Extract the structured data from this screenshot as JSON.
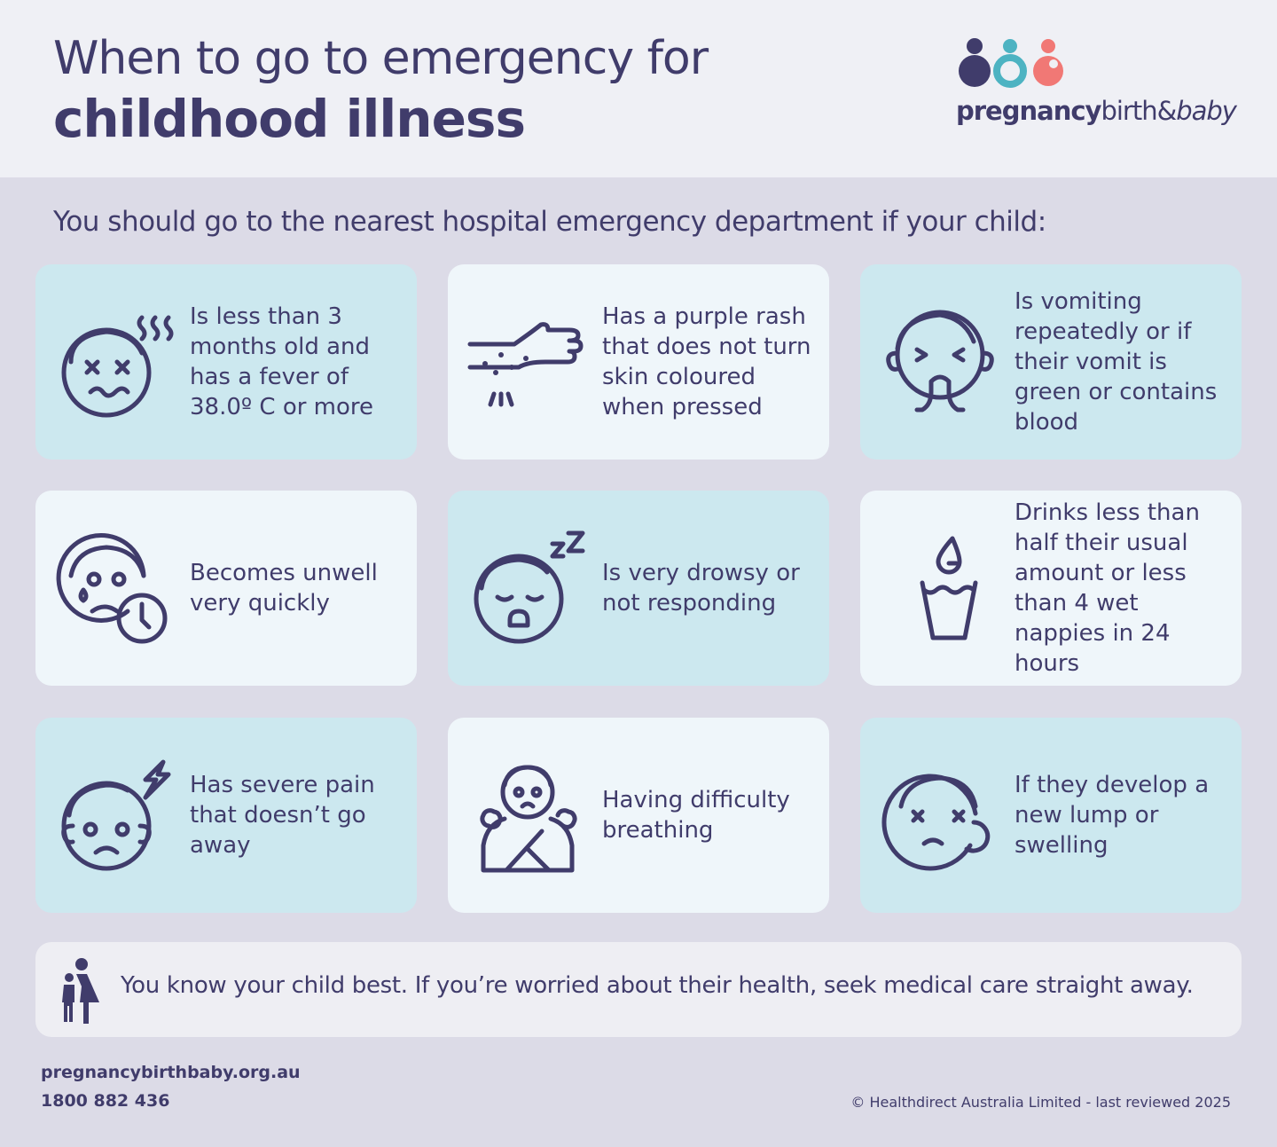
{
  "header": {
    "title_line1": "When to go to emergency for",
    "title_line2": "childhood illness",
    "logo": {
      "bold": "pregnancy",
      "regular": "birth",
      "amp": "&",
      "italic": "baby"
    }
  },
  "intro": "You should go to the nearest hospital emergency department if your child:",
  "cards": [
    {
      "text": "Is less than 3 months old and has a fever of 38.0º C or more"
    },
    {
      "text": "Has a purple rash that does not turn skin coloured when pressed"
    },
    {
      "text": "Is vomiting repeatedly or if their vomit is green or contains blood"
    },
    {
      "text": "Becomes unwell very quickly"
    },
    {
      "text": "Is very drowsy or not responding"
    },
    {
      "text": "Drinks less than half their usual amount or less than 4 wet nappies in 24 hours"
    },
    {
      "text": "Has severe pain that doesn’t go away"
    },
    {
      "text": "Having difficulty breathing"
    },
    {
      "text": "If they develop a new lump or swelling"
    }
  ],
  "note": "You know your child best. If you’re worried about their health, seek medical care straight away.",
  "footer": {
    "website": "pregnancybirthbaby.org.au",
    "phone": "1800 882 436",
    "copyright": "© Healthdirect Australia Limited - last reviewed 2025"
  }
}
